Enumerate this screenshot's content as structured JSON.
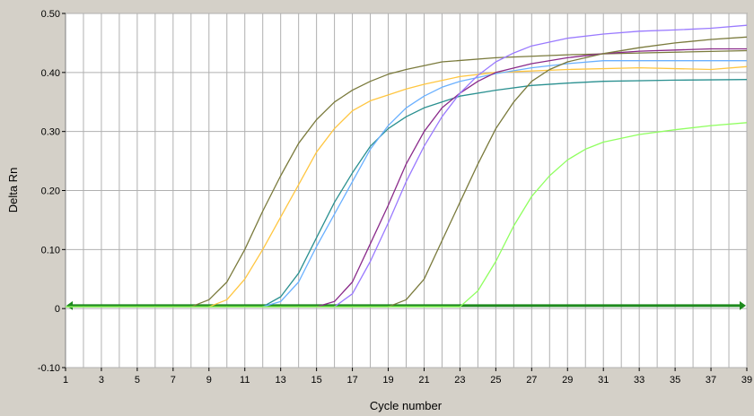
{
  "chart_data": {
    "type": "line",
    "title": "",
    "xlabel": "Cycle number",
    "ylabel": "Delta Rn",
    "xlim": [
      1,
      39
    ],
    "ylim": [
      -0.1,
      0.5
    ],
    "x_ticks": [
      "1",
      "3",
      "5",
      "7",
      "9",
      "11",
      "13",
      "15",
      "17",
      "19",
      "21",
      "23",
      "25",
      "27",
      "29",
      "31",
      "33",
      "35",
      "37",
      "39"
    ],
    "y_ticks": [
      "0.50",
      "0.40",
      "0.30",
      "0.20",
      "0.10",
      "0",
      "-0.10"
    ],
    "y_tick_values": [
      0.5,
      0.4,
      0.3,
      0.2,
      0.1,
      0,
      -0.1
    ],
    "grid": true,
    "threshold": {
      "value": 0.005,
      "color": "#1e8a1e"
    },
    "plot_background": "#ffffff",
    "panel_background": "#d4d0c8",
    "series": [
      {
        "color": "#7a7a3c",
        "x": [
          1,
          8,
          9,
          10,
          11,
          12,
          13,
          14,
          15,
          16,
          17,
          18,
          19,
          20,
          22,
          25,
          29,
          33,
          39
        ],
        "y": [
          0.003,
          0.003,
          0.015,
          0.045,
          0.1,
          0.165,
          0.225,
          0.28,
          0.32,
          0.35,
          0.37,
          0.385,
          0.397,
          0.405,
          0.418,
          0.425,
          0.43,
          0.433,
          0.437
        ]
      },
      {
        "color": "#ffc640",
        "x": [
          1,
          9,
          10,
          11,
          12,
          13,
          14,
          15,
          16,
          17,
          18,
          19,
          20,
          21,
          23,
          25,
          29,
          33,
          37,
          39
        ],
        "y": [
          0.003,
          0.003,
          0.015,
          0.05,
          0.1,
          0.155,
          0.21,
          0.265,
          0.305,
          0.335,
          0.352,
          0.362,
          0.372,
          0.38,
          0.393,
          0.4,
          0.405,
          0.408,
          0.405,
          0.41
        ]
      },
      {
        "color": "#2a9090",
        "x": [
          1,
          12,
          13,
          14,
          15,
          16,
          17,
          18,
          19,
          20,
          21,
          22,
          23,
          25,
          27,
          29,
          31,
          35,
          39
        ],
        "y": [
          0.003,
          0.003,
          0.02,
          0.06,
          0.12,
          0.18,
          0.23,
          0.275,
          0.305,
          0.325,
          0.34,
          0.35,
          0.36,
          0.37,
          0.378,
          0.382,
          0.385,
          0.387,
          0.388
        ]
      },
      {
        "color": "#6ab0ff",
        "x": [
          1,
          12,
          13,
          14,
          15,
          16,
          17,
          18,
          19,
          20,
          21,
          22,
          23,
          25,
          27,
          29,
          31,
          33,
          35,
          37,
          39
        ],
        "y": [
          0.003,
          0.003,
          0.012,
          0.045,
          0.105,
          0.16,
          0.215,
          0.27,
          0.31,
          0.34,
          0.36,
          0.375,
          0.385,
          0.398,
          0.408,
          0.415,
          0.42,
          0.42,
          0.42,
          0.42,
          0.42
        ]
      },
      {
        "color": "#8a2a8a",
        "x": [
          1,
          15,
          16,
          17,
          18,
          19,
          20,
          21,
          22,
          23,
          24,
          25,
          27,
          29,
          31,
          33,
          35,
          37,
          39
        ],
        "y": [
          0.003,
          0.003,
          0.012,
          0.045,
          0.11,
          0.175,
          0.245,
          0.3,
          0.34,
          0.365,
          0.385,
          0.4,
          0.415,
          0.425,
          0.432,
          0.436,
          0.438,
          0.44,
          0.44
        ]
      },
      {
        "color": "#9a7aff",
        "x": [
          1,
          16,
          17,
          18,
          19,
          20,
          21,
          22,
          23,
          24,
          25,
          26,
          27,
          29,
          31,
          33,
          35,
          37,
          39
        ],
        "y": [
          0.003,
          0.003,
          0.025,
          0.08,
          0.145,
          0.215,
          0.275,
          0.325,
          0.365,
          0.395,
          0.418,
          0.433,
          0.445,
          0.458,
          0.465,
          0.47,
          0.472,
          0.475,
          0.48
        ]
      },
      {
        "color": "#7a7a3c",
        "x": [
          1,
          19,
          20,
          21,
          22,
          23,
          24,
          25,
          26,
          27,
          28,
          29,
          31,
          33,
          35,
          37,
          39
        ],
        "y": [
          0.003,
          0.003,
          0.015,
          0.05,
          0.115,
          0.18,
          0.245,
          0.305,
          0.35,
          0.385,
          0.405,
          0.418,
          0.432,
          0.442,
          0.45,
          0.456,
          0.46
        ]
      },
      {
        "color": "#90ff60",
        "x": [
          1,
          23,
          24,
          25,
          26,
          27,
          28,
          29,
          30,
          31,
          33,
          35,
          37,
          39
        ],
        "y": [
          0.003,
          0.003,
          0.03,
          0.08,
          0.14,
          0.19,
          0.225,
          0.252,
          0.27,
          0.282,
          0.295,
          0.303,
          0.31,
          0.315
        ]
      }
    ]
  }
}
